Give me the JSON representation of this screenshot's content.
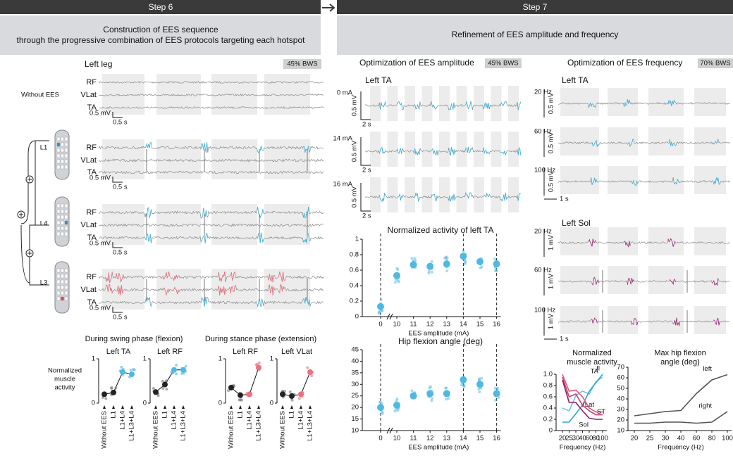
{
  "step6": {
    "title": "Step 6",
    "subtitle": [
      "Construction of EES sequence",
      "through the progressive combination of EES protocols targeting each hotspot"
    ]
  },
  "step7": {
    "title": "Step 7",
    "subtitle": "Refinement of EES amplitude and frequency"
  },
  "left_leg": {
    "title": "Left leg",
    "bws": "45% BWS",
    "conditions": [
      "Without EES",
      "L1",
      "L4",
      "L3"
    ],
    "muscles": [
      "RF",
      "VLat",
      "TA"
    ],
    "scale_mv": "0.5 mV",
    "scale_s": "0.5 s"
  },
  "phases": [
    "During swing phase (flexion)",
    "During stance phase (extension)"
  ],
  "hotspot_charts": {
    "ylabel": [
      "Normalized",
      "muscle",
      "activity"
    ],
    "categories": [
      "Without EES",
      "L1",
      "L1+L4",
      "L1+L3+L4"
    ],
    "ylim": [
      0,
      1
    ],
    "yticks": [
      0,
      1
    ],
    "panels": [
      {
        "title": "Left TA",
        "color": "#4fb9e3",
        "values": [
          0.2,
          0.24,
          0.7,
          0.65
        ]
      },
      {
        "title": "Left RF",
        "color": "#4fb9e3",
        "values": [
          0.25,
          0.42,
          0.75,
          0.75
        ]
      },
      {
        "title": "Left RF",
        "color": "#ef6f7d",
        "values": [
          0.35,
          0.18,
          0.2,
          0.8
        ]
      },
      {
        "title": "Left VLat",
        "color": "#ef6f7d",
        "values": [
          0.2,
          0.16,
          0.2,
          0.7
        ]
      }
    ]
  },
  "amplitude": {
    "title": "Optimization of EES amplitude",
    "bws": "45% BWS",
    "muscle": "Left TA",
    "rows": [
      "0 mA",
      "14 mA",
      "16 mA"
    ],
    "scale_mv": "0.5 mV",
    "scale_s": "2 s"
  },
  "frequency": {
    "title": "Optimization of EES frequency",
    "bws": "70% BWS",
    "groups": [
      {
        "muscle": "Left TA",
        "rows": [
          "20 Hz",
          "60 Hz",
          "100 Hz"
        ],
        "scale_mv": "0.5 mV",
        "scale_s": "1 s",
        "color": "#3fb5e0"
      },
      {
        "muscle": "Left Sol",
        "rows": [
          "20 Hz",
          "60 Hz",
          "100 Hz"
        ],
        "scale_mv": "1 mV",
        "scale_s": "1 s",
        "color": "#9c2a7e"
      }
    ]
  },
  "chart_data": [
    {
      "type": "scatter",
      "title": "Normalized activity of left TA",
      "xlabel": "EES amplitude (mA)",
      "categories": [
        "0",
        "10",
        "11",
        "12",
        "13",
        "14",
        "15",
        "16"
      ],
      "values": [
        0.13,
        0.53,
        0.67,
        0.65,
        0.68,
        0.78,
        0.71,
        0.68
      ],
      "color": "#4fb9e3",
      "dashed": [
        true,
        false,
        false,
        false,
        false,
        true,
        false,
        true
      ],
      "ylim": [
        0,
        1
      ],
      "yticks": [
        0,
        0.2,
        0.4,
        0.6,
        0.8,
        1
      ]
    },
    {
      "type": "scatter",
      "title": "Hip flexion angle (deg)",
      "xlabel": "EES amplitude (mA)",
      "categories": [
        "0",
        "10",
        "11",
        "12",
        "13",
        "14",
        "15",
        "16"
      ],
      "values": [
        20,
        21,
        25,
        26,
        26,
        32,
        30,
        26
      ],
      "color": "#4fb9e3",
      "dashed": [
        true,
        false,
        false,
        false,
        false,
        true,
        false,
        true
      ],
      "ylim": [
        10,
        45
      ],
      "yticks": [
        10,
        15,
        20,
        25,
        30,
        35,
        40,
        45
      ]
    },
    {
      "type": "line",
      "title": [
        "Normalized",
        "muscle activity"
      ],
      "xlabel": "Frequency (Hz)",
      "categories": [
        "20",
        "25",
        "30",
        "40",
        "60",
        "80",
        "100"
      ],
      "ylim": [
        0,
        1
      ],
      "yticks": [
        0,
        0.2,
        0.4,
        0.6,
        0.8,
        {
          "value": 1,
          "label": "1.0"
        }
      ],
      "series": [
        {
          "name": "Il",
          "color": "#6ac6e8",
          "values": [
            0.4,
            0.35,
            0.62,
            0.7,
            0.65,
            0.87,
            0.95
          ]
        },
        {
          "name": "TA",
          "color": "#2ea6d6",
          "values": [
            0.15,
            0.15,
            0.3,
            0.45,
            0.7,
            0.85,
            1.0
          ]
        },
        {
          "name": "VLat",
          "color": "#e85a73",
          "values": [
            1.0,
            0.7,
            0.72,
            0.6,
            0.4,
            0.33,
            0.33
          ]
        },
        {
          "name": "ST",
          "color": "#c23d7c",
          "values": [
            0.95,
            0.6,
            0.65,
            0.45,
            0.35,
            0.28,
            0.28
          ]
        },
        {
          "name": "Sol",
          "color": "#8a1f65",
          "values": [
            0.9,
            0.5,
            0.5,
            0.35,
            0.22,
            0.2,
            0.2
          ]
        }
      ]
    },
    {
      "type": "line",
      "title": [
        "Max hip flexion",
        "angle (deg)"
      ],
      "xlabel": "Frequency (Hz)",
      "categories": [
        "20",
        "25",
        "30",
        "40",
        "60",
        "80",
        "100"
      ],
      "ylim": [
        10,
        70
      ],
      "yticks": [
        10,
        20,
        30,
        40,
        50,
        60,
        70
      ],
      "series": [
        {
          "name": "left",
          "color": "#555555",
          "values": [
            24,
            26,
            28,
            29,
            45,
            58,
            63
          ]
        },
        {
          "name": "right",
          "color": "#555555",
          "values": [
            17,
            17,
            18,
            18,
            17,
            18,
            28
          ]
        }
      ]
    }
  ]
}
